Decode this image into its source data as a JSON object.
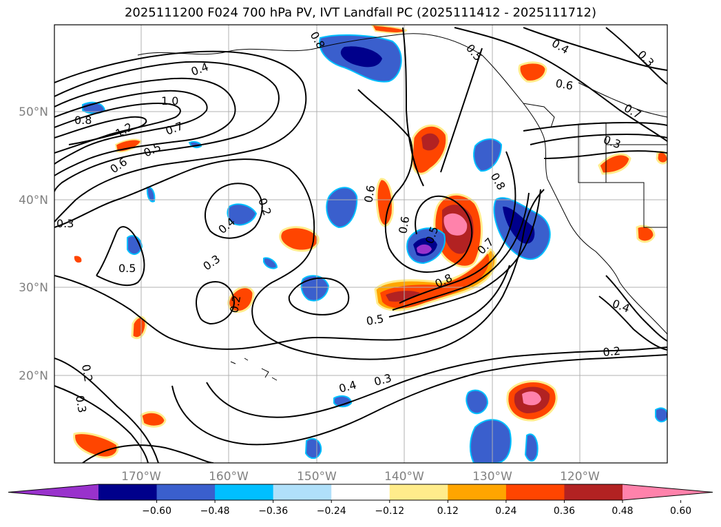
{
  "title": "2025111200 F024 700 hPa PV, IVT Landfall PC (2025111412 - 2025111712)",
  "map": {
    "lon_labels": [
      "170°W",
      "160°W",
      "150°W",
      "140°W",
      "130°W",
      "120°W"
    ],
    "lat_labels": [
      "50°N",
      "40°N",
      "30°N",
      "20°N"
    ],
    "contour_labels": [
      "1.0",
      "1.2",
      "0.8",
      "0.7",
      "0.5",
      "0.6",
      "0.4",
      "0.3",
      "0.2",
      "0.5",
      "0.4",
      "0.3",
      "0.2",
      "0.3",
      "0.2",
      "0.6",
      "0.6",
      "0.5",
      "0.7",
      "0.8",
      "0.5",
      "0.8",
      "0.4",
      "0.3",
      "0.2",
      "0.4",
      "0.3",
      "0.6",
      "0.7",
      "0.5",
      "0.8",
      "0.3",
      "0.4"
    ]
  },
  "colorbar": {
    "colors": [
      "#9932cc",
      "#00008b",
      "#3a5fcd",
      "#00bfff",
      "#b0e0fa",
      "#ffffff",
      "#ffec8b",
      "#ffa500",
      "#ff4500",
      "#b22222",
      "#ff82ab"
    ],
    "tick_labels": [
      "−0.60",
      "−0.48",
      "−0.36",
      "−0.24",
      "−0.12",
      "0.12",
      "0.24",
      "0.36",
      "0.48",
      "0.60"
    ]
  }
}
